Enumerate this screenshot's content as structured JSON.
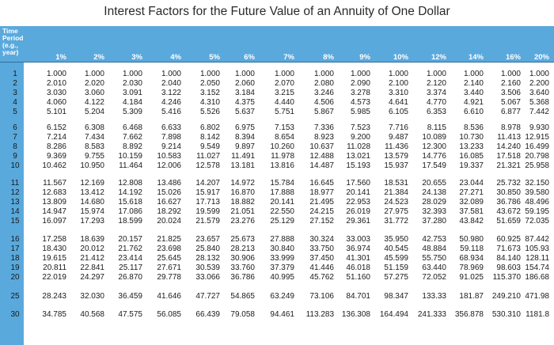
{
  "title": "Interest Factors for the Future Value of an Annuity of One Dollar",
  "header_label": [
    "Time",
    "Period",
    "(e.g.,",
    "year)"
  ],
  "rates": [
    "1%",
    "2%",
    "3%",
    "4%",
    "5%",
    "6%",
    "7%",
    "8%",
    "9%",
    "10%",
    "12%",
    "14%",
    "16%",
    "20%"
  ],
  "rows": [
    {
      "period": "1",
      "values": [
        "1.000",
        "1.000",
        "1.000",
        "1.000",
        "1.000",
        "1.000",
        "1.000",
        "1.000",
        "1.000",
        "1.000",
        "1.000",
        "1.000",
        "1.000",
        "1.000"
      ]
    },
    {
      "period": "2",
      "values": [
        "2.010",
        "2.020",
        "2.030",
        "2.040",
        "2.050",
        "2.060",
        "2.070",
        "2.080",
        "2.090",
        "2.100",
        "2.120",
        "2.140",
        "2.160",
        "2.200"
      ]
    },
    {
      "period": "3",
      "values": [
        "3.030",
        "3.060",
        "3.091",
        "3.122",
        "3.152",
        "3.184",
        "3.215",
        "3.246",
        "3.278",
        "3.310",
        "3.374",
        "3.440",
        "3.506",
        "3.640"
      ]
    },
    {
      "period": "4",
      "values": [
        "4.060",
        "4.122",
        "4.184",
        "4.246",
        "4.310",
        "4.375",
        "4.440",
        "4.506",
        "4.573",
        "4.641",
        "4.770",
        "4.921",
        "5.067",
        "5.368"
      ]
    },
    {
      "period": "5",
      "values": [
        "5.101",
        "5.204",
        "5.309",
        "5.416",
        "5.526",
        "5.637",
        "5.751",
        "5.867",
        "5.985",
        "6.105",
        "6.353",
        "6.610",
        "6.877",
        "7.442"
      ]
    },
    {
      "period": "6",
      "values": [
        "6.152",
        "6.308",
        "6.468",
        "6.633",
        "6.802",
        "6.975",
        "7.153",
        "7.336",
        "7.523",
        "7.716",
        "8.115",
        "8.536",
        "8.978",
        "9.930"
      ]
    },
    {
      "period": "7",
      "values": [
        "7.214",
        "7.434",
        "7.662",
        "7.898",
        "8.142",
        "8.394",
        "8.654",
        "8.923",
        "9.200",
        "9.487",
        "10.089",
        "10.730",
        "11.413",
        "12.915"
      ]
    },
    {
      "period": "8",
      "values": [
        "8.286",
        "8.583",
        "8.892",
        "9.214",
        "9.549",
        "9.897",
        "10.260",
        "10.637",
        "11.028",
        "11.436",
        "12.300",
        "13.233",
        "14.240",
        "16.499"
      ]
    },
    {
      "period": "9",
      "values": [
        "9.369",
        "9.755",
        "10.159",
        "10.583",
        "11.027",
        "11.491",
        "11.978",
        "12.488",
        "13.021",
        "13.579",
        "14.776",
        "16.085",
        "17.518",
        "20.798"
      ]
    },
    {
      "period": "10",
      "values": [
        "10.462",
        "10.950",
        "11.464",
        "12.006",
        "12.578",
        "13.181",
        "13.816",
        "14.487",
        "15.193",
        "15.937",
        "17.549",
        "19.337",
        "21.321",
        "25.958"
      ]
    },
    {
      "period": "11",
      "values": [
        "11.567",
        "12.169",
        "12.808",
        "13.486",
        "14.207",
        "14.972",
        "15.784",
        "16.645",
        "17.560",
        "18.531",
        "20.655",
        "23.044",
        "25.732",
        "32.150"
      ]
    },
    {
      "period": "12",
      "values": [
        "12.683",
        "13.412",
        "14.192",
        "15.026",
        "15.917",
        "16.870",
        "17.888",
        "18.977",
        "20.141",
        "21.384",
        "24.138",
        "27.271",
        "30.850",
        "39.580"
      ]
    },
    {
      "period": "13",
      "values": [
        "13.809",
        "14.680",
        "15.618",
        "16.627",
        "17.713",
        "18.882",
        "20.141",
        "21.495",
        "22.953",
        "24.523",
        "28.029",
        "32.089",
        "36.786",
        "48.496"
      ]
    },
    {
      "period": "14",
      "values": [
        "14.947",
        "15.974",
        "17.086",
        "18.292",
        "19.599",
        "21.051",
        "22.550",
        "24.215",
        "26.019",
        "27.975",
        "32.393",
        "37.581",
        "43.672",
        "59.195"
      ]
    },
    {
      "period": "15",
      "values": [
        "16.097",
        "17.293",
        "18.599",
        "20.024",
        "21.579",
        "23.276",
        "25.129",
        "27.152",
        "29.361",
        "31.772",
        "37.280",
        "43.842",
        "51.659",
        "72.035"
      ]
    },
    {
      "period": "16",
      "values": [
        "17.258",
        "18.639",
        "20.157",
        "21.825",
        "23.657",
        "25.673",
        "27.888",
        "30.324",
        "33.003",
        "35.950",
        "42.753",
        "50.980",
        "60.925",
        "87.442"
      ]
    },
    {
      "period": "17",
      "values": [
        "18.430",
        "20.012",
        "21.762",
        "23.698",
        "25.840",
        "28.213",
        "30.840",
        "33.750",
        "36.974",
        "40.545",
        "48.884",
        "59.118",
        "71.673",
        "105.93"
      ]
    },
    {
      "period": "18",
      "values": [
        "19.615",
        "21.412",
        "23.414",
        "25.645",
        "28.132",
        "30.906",
        "33.999",
        "37.450",
        "41.301",
        "45.599",
        "55.750",
        "68.934",
        "84.140",
        "128.11"
      ]
    },
    {
      "period": "19",
      "values": [
        "20.811",
        "22.841",
        "25.117",
        "27.671",
        "30.539",
        "33.760",
        "37.379",
        "41.446",
        "46.018",
        "51.159",
        "63.440",
        "78.969",
        "98.603",
        "154.74"
      ]
    },
    {
      "period": "20",
      "values": [
        "22.019",
        "24.297",
        "26.870",
        "29.778",
        "33.066",
        "36.786",
        "40.995",
        "45.762",
        "51.160",
        "57.275",
        "72.052",
        "91.025",
        "115.370",
        "186.68"
      ]
    },
    {
      "period": "25",
      "values": [
        "28.243",
        "32.030",
        "36.459",
        "41.646",
        "47.727",
        "54.865",
        "63.249",
        "73.106",
        "84.701",
        "98.347",
        "133.33",
        "181.87",
        "249.210",
        "471.98"
      ]
    },
    {
      "period": "30",
      "values": [
        "34.785",
        "40.568",
        "47.575",
        "56.085",
        "66.439",
        "79.058",
        "94.461",
        "113.283",
        "136.308",
        "164.494",
        "241.333",
        "356.878",
        "530.310",
        "1181.8"
      ]
    }
  ],
  "colors": {
    "header_band": "#5aa9dd",
    "header_text": "#ffffff",
    "body_text": "#1a1a1a"
  }
}
